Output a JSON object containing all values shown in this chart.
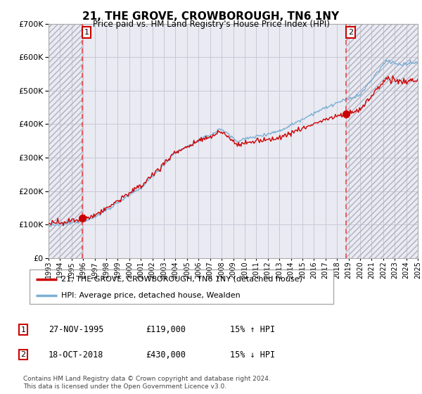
{
  "title": "21, THE GROVE, CROWBOROUGH, TN6 1NY",
  "subtitle": "Price paid vs. HM Land Registry's House Price Index (HPI)",
  "ylim": [
    0,
    700000
  ],
  "yticks": [
    0,
    100000,
    200000,
    300000,
    400000,
    500000,
    600000,
    700000
  ],
  "sale1_date": 1995.92,
  "sale1_price": 119000,
  "sale1_label": "1",
  "sale2_date": 2018.8,
  "sale2_price": 430000,
  "sale2_label": "2",
  "legend_line1": "21, THE GROVE, CROWBOROUGH, TN6 1NY (detached house)",
  "legend_line2": "HPI: Average price, detached house, Wealden",
  "table_row1": [
    "1",
    "27-NOV-1995",
    "£119,000",
    "15% ↑ HPI"
  ],
  "table_row2": [
    "2",
    "18-OCT-2018",
    "£430,000",
    "15% ↓ HPI"
  ],
  "footnote": "Contains HM Land Registry data © Crown copyright and database right 2024.\nThis data is licensed under the Open Government Licence v3.0.",
  "hpi_color": "#7bafd4",
  "price_color": "#cc0000",
  "vline_color": "#ee4444",
  "grid_color": "#c8c8d8",
  "plot_bg_color": "#eaeaf2",
  "xstart": 1993,
  "xend": 2025
}
